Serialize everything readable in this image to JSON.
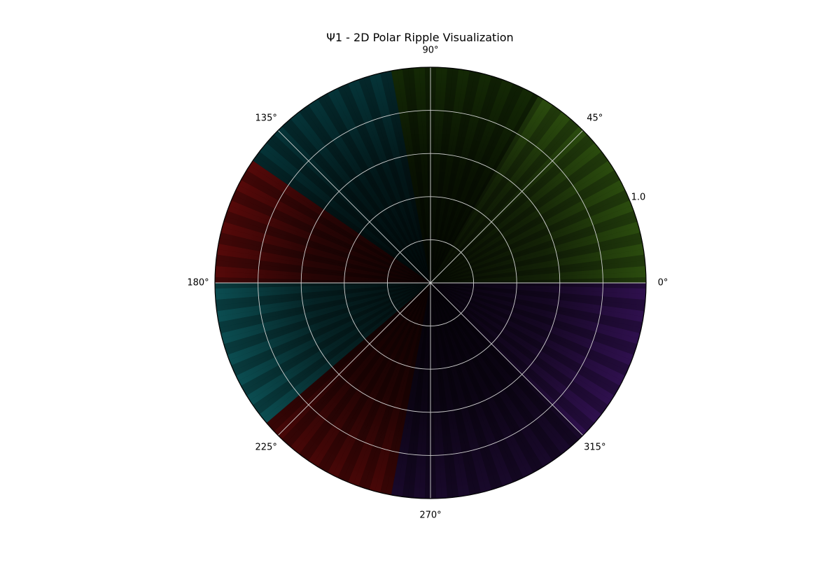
{
  "chart_data": {
    "type": "heatmap",
    "projection": "polar",
    "title": "Ψ1 - 2D Polar Ripple Visualization",
    "angular_tick_labels": [
      "0°",
      "45°",
      "90°",
      "135°",
      "180°",
      "225°",
      "270°",
      "315°"
    ],
    "angular_ticks_deg": [
      0,
      45,
      90,
      135,
      180,
      225,
      270,
      315
    ],
    "radial_grid": [
      0.2,
      0.4,
      0.6,
      0.8,
      1.0
    ],
    "radial_tick_labels": [
      "1.0"
    ],
    "rlim": [
      0,
      1.0
    ],
    "grid": true,
    "background_color": "#000000",
    "ripple_bands_approx": 60,
    "color_sectors": [
      {
        "from_deg": 0,
        "to_deg": 60,
        "color": "#7fe02a"
      },
      {
        "from_deg": 60,
        "to_deg": 100,
        "color": "#3a7a10"
      },
      {
        "from_deg": 100,
        "to_deg": 145,
        "color": "#0f9aa6"
      },
      {
        "from_deg": 145,
        "to_deg": 180,
        "color": "#ff1a1a"
      },
      {
        "from_deg": 180,
        "to_deg": 220,
        "color": "#21e4f0"
      },
      {
        "from_deg": 220,
        "to_deg": 260,
        "color": "#d61515"
      },
      {
        "from_deg": 260,
        "to_deg": 315,
        "color": "#4b1a80"
      },
      {
        "from_deg": 315,
        "to_deg": 360,
        "color": "#8a2ee6"
      }
    ]
  }
}
